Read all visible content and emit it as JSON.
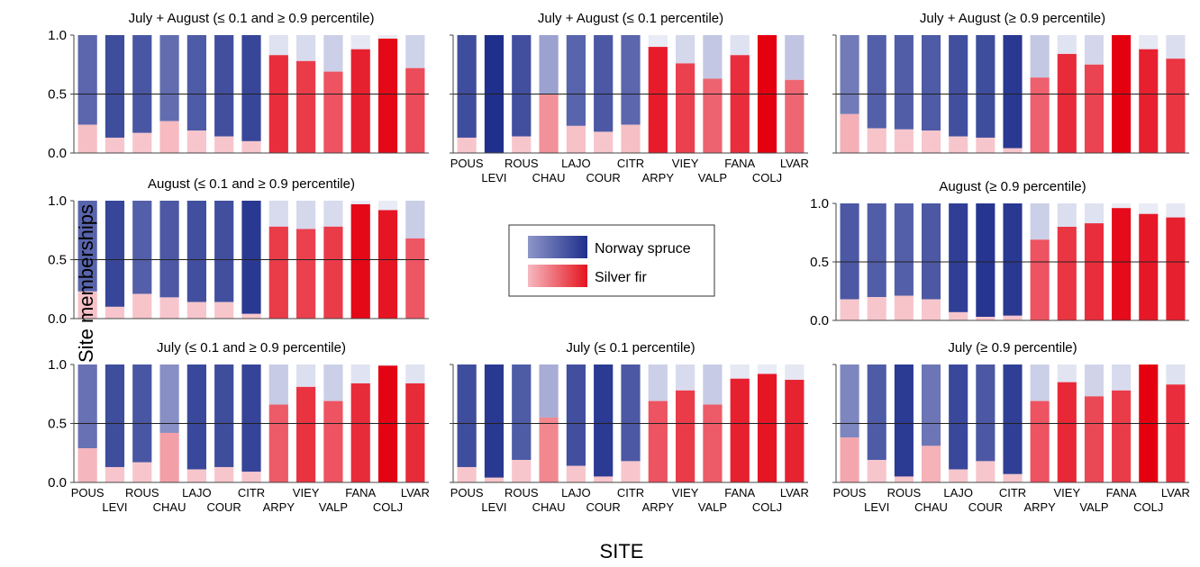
{
  "figure": {
    "ylabel": "Site memberships",
    "xlabel": "SITE",
    "legend": [
      {
        "label": "Norway spruce",
        "grad_from": "#8e96c8",
        "grad_to": "#1f2f8c"
      },
      {
        "label": "Silver fir",
        "grad_from": "#f6b9c0",
        "grad_to": "#e4141e"
      }
    ],
    "colors": {
      "spruce_light": "#a8add6",
      "spruce_dark": "#1f2f8c",
      "fir_light": "#f7c6cc",
      "fir_dark": "#e4000f",
      "remainder_spruce": "#d6d9ec",
      "remainder_fir": "#fbdde0"
    }
  },
  "chart_data": [
    {
      "type": "bar",
      "stacked": true,
      "title": "July + August (≤ 0.1 and ≥ 0.9 percentile)",
      "categories": [
        "POUS",
        "LEVI",
        "ROUS",
        "CHAU",
        "LAJO",
        "COUR",
        "CITR",
        "ARPY",
        "VIEY",
        "VALP",
        "FANA",
        "COLJ",
        "LVAR"
      ],
      "values": [
        0.24,
        0.13,
        0.17,
        0.27,
        0.19,
        0.14,
        0.1,
        0.83,
        0.78,
        0.69,
        0.88,
        0.97,
        0.72
      ],
      "species": [
        "NS",
        "NS",
        "NS",
        "NS",
        "NS",
        "NS",
        "NS",
        "SF",
        "SF",
        "SF",
        "SF",
        "SF",
        "SF"
      ],
      "ylim": [
        0,
        1
      ],
      "yticks": [
        "0.0",
        "0.5",
        "1.0"
      ],
      "show_yticks": true,
      "show_xticks": false
    },
    {
      "type": "bar",
      "stacked": true,
      "title": "July + August (≤ 0.1 percentile)",
      "categories": [
        "POUS",
        "LEVI",
        "ROUS",
        "CHAU",
        "LAJO",
        "COUR",
        "CITR",
        "ARPY",
        "VIEY",
        "VALP",
        "FANA",
        "COLJ",
        "LVAR"
      ],
      "values": [
        0.13,
        0.0,
        0.14,
        0.5,
        0.23,
        0.18,
        0.24,
        0.9,
        0.76,
        0.63,
        0.83,
        1.0,
        0.62
      ],
      "species": [
        "NS",
        "NS",
        "NS",
        "NS",
        "NS",
        "NS",
        "NS",
        "SF",
        "SF",
        "SF",
        "SF",
        "SF",
        "SF"
      ],
      "ylim": [
        0,
        1
      ],
      "yticks": [
        "0.0",
        "0.5",
        "1.0"
      ],
      "show_yticks": false,
      "show_xticks": true
    },
    {
      "type": "bar",
      "stacked": true,
      "title": "July + August (≥ 0.9 percentile)",
      "categories": [
        "POUS",
        "LEVI",
        "ROUS",
        "CHAU",
        "LAJO",
        "COUR",
        "CITR",
        "ARPY",
        "VIEY",
        "VALP",
        "FANA",
        "COLJ",
        "LVAR"
      ],
      "values": [
        0.33,
        0.21,
        0.2,
        0.19,
        0.14,
        0.13,
        0.04,
        0.64,
        0.84,
        0.75,
        1.0,
        0.88,
        0.8
      ],
      "species": [
        "NS",
        "NS",
        "NS",
        "NS",
        "NS",
        "NS",
        "NS",
        "SF",
        "SF",
        "SF",
        "SF",
        "SF",
        "SF"
      ],
      "ylim": [
        0,
        1
      ],
      "yticks": [
        "0.0",
        "0.5",
        "1.0"
      ],
      "show_yticks": false,
      "show_xticks": false
    },
    {
      "type": "bar",
      "stacked": true,
      "title": "August (≤ 0.1 and ≥ 0.9 percentile)",
      "categories": [
        "POUS",
        "LEVI",
        "ROUS",
        "CHAU",
        "LAJO",
        "COUR",
        "CITR",
        "ARPY",
        "VIEY",
        "VALP",
        "FANA",
        "COLJ",
        "LVAR"
      ],
      "values": [
        0.23,
        0.1,
        0.21,
        0.18,
        0.14,
        0.14,
        0.04,
        0.78,
        0.76,
        0.78,
        0.97,
        0.92,
        0.68
      ],
      "species": [
        "NS",
        "NS",
        "NS",
        "NS",
        "NS",
        "NS",
        "NS",
        "SF",
        "SF",
        "SF",
        "SF",
        "SF",
        "SF"
      ],
      "ylim": [
        0,
        1
      ],
      "yticks": [
        "0.0",
        "0.5",
        "1.0"
      ],
      "show_yticks": true,
      "show_xticks": false
    },
    {
      "type": "bar",
      "stacked": true,
      "title": "August (≥ 0.9 percentile)",
      "categories": [
        "POUS",
        "LEVI",
        "ROUS",
        "CHAU",
        "LAJO",
        "COUR",
        "CITR",
        "ARPY",
        "VIEY",
        "VALP",
        "FANA",
        "COLJ",
        "LVAR"
      ],
      "values": [
        0.18,
        0.2,
        0.21,
        0.18,
        0.07,
        0.03,
        0.04,
        0.69,
        0.8,
        0.83,
        0.96,
        0.91,
        0.88
      ],
      "species": [
        "NS",
        "NS",
        "NS",
        "NS",
        "NS",
        "NS",
        "NS",
        "SF",
        "SF",
        "SF",
        "SF",
        "SF",
        "SF"
      ],
      "ylim": [
        0,
        1
      ],
      "yticks": [
        "0.0",
        "0.5",
        "1.0"
      ],
      "show_yticks": true,
      "show_xticks": false
    },
    {
      "type": "bar",
      "stacked": true,
      "title": "July (≤ 0.1 and ≥ 0.9 percentile)",
      "categories": [
        "POUS",
        "LEVI",
        "ROUS",
        "CHAU",
        "LAJO",
        "COUR",
        "CITR",
        "ARPY",
        "VIEY",
        "VALP",
        "FANA",
        "COLJ",
        "LVAR"
      ],
      "values": [
        0.29,
        0.13,
        0.17,
        0.42,
        0.11,
        0.13,
        0.09,
        0.66,
        0.81,
        0.69,
        0.84,
        0.99,
        0.84
      ],
      "species": [
        "NS",
        "NS",
        "NS",
        "NS",
        "NS",
        "NS",
        "NS",
        "SF",
        "SF",
        "SF",
        "SF",
        "SF",
        "SF"
      ],
      "ylim": [
        0,
        1
      ],
      "yticks": [
        "0.0",
        "0.5",
        "1.0"
      ],
      "show_yticks": true,
      "show_xticks": true
    },
    {
      "type": "bar",
      "stacked": true,
      "title": "July (≤ 0.1 percentile)",
      "categories": [
        "POUS",
        "LEVI",
        "ROUS",
        "CHAU",
        "LAJO",
        "COUR",
        "CITR",
        "ARPY",
        "VIEY",
        "VALP",
        "FANA",
        "COLJ",
        "LVAR"
      ],
      "values": [
        0.13,
        0.04,
        0.19,
        0.55,
        0.14,
        0.05,
        0.18,
        0.69,
        0.78,
        0.66,
        0.88,
        0.92,
        0.87
      ],
      "species": [
        "NS",
        "NS",
        "NS",
        "NS",
        "NS",
        "NS",
        "NS",
        "SF",
        "SF",
        "SF",
        "SF",
        "SF",
        "SF"
      ],
      "ylim": [
        0,
        1
      ],
      "yticks": [
        "0.0",
        "0.5",
        "1.0"
      ],
      "show_yticks": false,
      "show_xticks": true
    },
    {
      "type": "bar",
      "stacked": true,
      "title": "July (≥ 0.9 percentile)",
      "categories": [
        "POUS",
        "LEVI",
        "ROUS",
        "CHAU",
        "LAJO",
        "COUR",
        "CITR",
        "ARPY",
        "VIEY",
        "VALP",
        "FANA",
        "COLJ",
        "LVAR"
      ],
      "values": [
        0.38,
        0.19,
        0.05,
        0.31,
        0.11,
        0.18,
        0.07,
        0.69,
        0.85,
        0.73,
        0.78,
        1.0,
        0.83
      ],
      "species": [
        "NS",
        "NS",
        "NS",
        "NS",
        "NS",
        "NS",
        "NS",
        "SF",
        "SF",
        "SF",
        "SF",
        "SF",
        "SF"
      ],
      "ylim": [
        0,
        1
      ],
      "yticks": [
        "0.0",
        "0.5",
        "1.0"
      ],
      "show_yticks": false,
      "show_xticks": true
    }
  ]
}
